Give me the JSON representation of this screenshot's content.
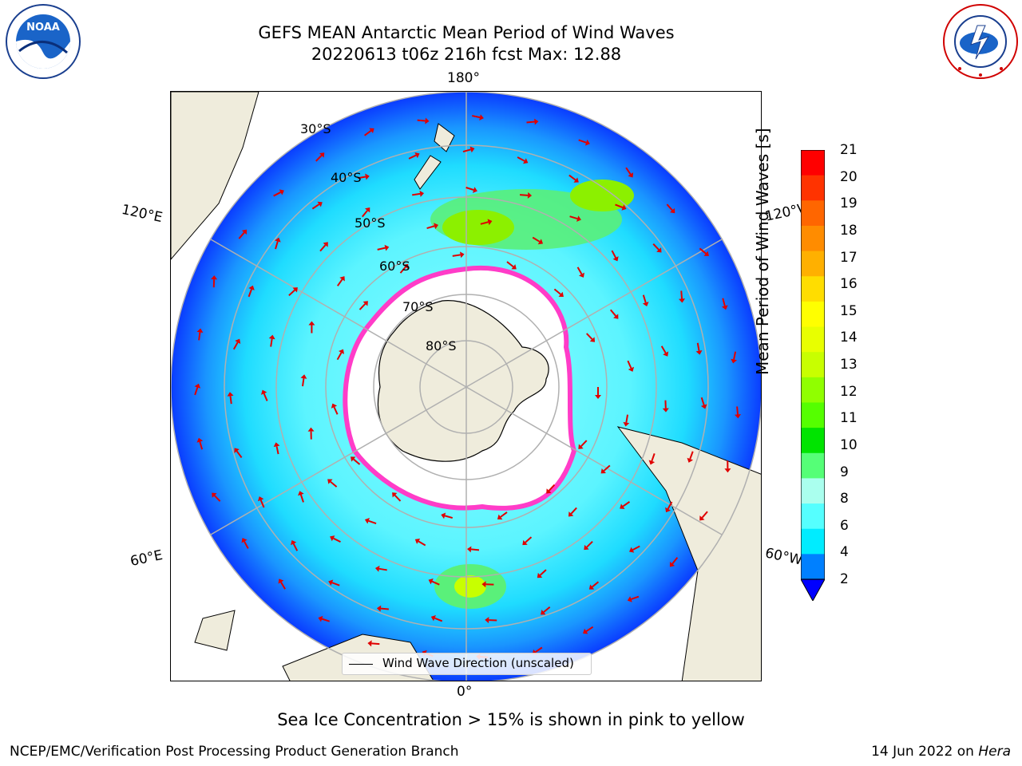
{
  "title": {
    "line1": "GEFS MEAN Antarctic Mean Period of Wind Waves",
    "line2": "20220613 t06z 216h fcst   Max: 12.88"
  },
  "logos": {
    "noaa": {
      "text": "NOAA",
      "ring_text": "NATIONAL OCEANIC AND ATMOSPHERIC ADMINISTRATION · U.S. DEPARTMENT OF COMMERCE"
    },
    "nws": {
      "ring_text": "NATIONAL WEATHER SERVICE"
    }
  },
  "map": {
    "projection": "south-polar-stereographic",
    "longitude_labels": {
      "top": "180°",
      "bottom": "0°",
      "upper_left": "120°E",
      "upper_right": "120°W",
      "lower_left": "60°E",
      "lower_right": "60°W"
    },
    "latitude_labels": [
      "30°S",
      "40°S",
      "50°S",
      "60°S",
      "70°S",
      "80°S"
    ],
    "legend": "Wind Wave Direction (unscaled)",
    "colors": {
      "land": "#efecdc",
      "ice": "#ffffff",
      "ice_edge": "#ff3cc8",
      "arrows": "#e00000",
      "grid": "#b0b0b0"
    }
  },
  "colorbar": {
    "label": "Mean Period of Wind Waves [s]",
    "ticks": [
      "21",
      "20",
      "19",
      "18",
      "17",
      "16",
      "15",
      "14",
      "13",
      "12",
      "11",
      "10",
      "9",
      "8",
      "6",
      "4",
      "2"
    ],
    "colors_top_to_bottom": [
      "#ff0000",
      "#ff3300",
      "#ff6600",
      "#ff8c00",
      "#ffb000",
      "#ffdd00",
      "#ffff00",
      "#e8ff00",
      "#c8ff00",
      "#90ff00",
      "#55ff00",
      "#00e400",
      "#55ff77",
      "#aaffee",
      "#55ffff",
      "#00ecff",
      "#0080ff"
    ],
    "extend_below_color": "#0000ff"
  },
  "caption": "Sea Ice Concentration > 15% is shown in pink to yellow",
  "footer": {
    "left": "NCEP/EMC/Verification Post Processing Product Generation Branch",
    "right_prefix": "14 Jun 2022 on ",
    "right_host": "Hera"
  }
}
